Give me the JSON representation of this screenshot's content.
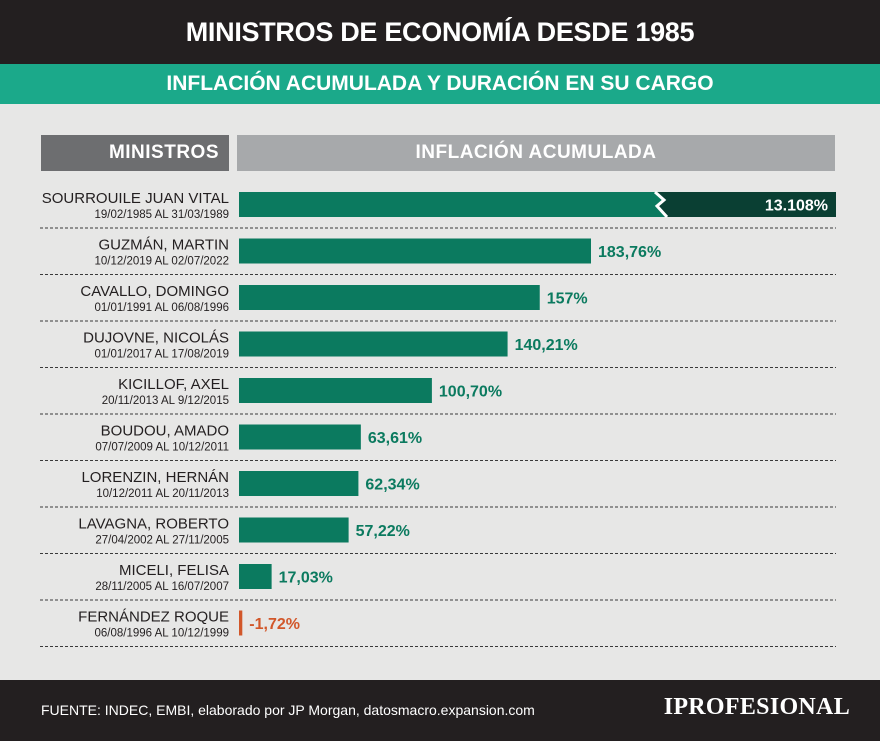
{
  "title": "MINISTROS DE ECONOMÍA DESDE 1985",
  "subtitle": "INFLACIÓN ACUMULADA Y DURACIÓN EN SU CARGO",
  "headers": {
    "ministers": "MINISTROS",
    "inflation": "INFLACIÓN ACUMULADA"
  },
  "footer": {
    "source": "FUENTE: INDEC, EMBI, elaborado por JP Morgan, datosmacro.expansion.com",
    "logo": "IPROFESIONAL"
  },
  "colors": {
    "bar": "#0b7a5f",
    "bar_dark": "#0a3f33",
    "label_positive": "#0b7a5f",
    "label_negative": "#d2572a",
    "text": "#231f20"
  },
  "chart_data": {
    "type": "bar",
    "orientation": "horizontal",
    "title": "INFLACIÓN ACUMULADA",
    "axis_break": {
      "category": "SOURROUILE JUAN VITAL",
      "note": "bar truncated with break mark"
    },
    "categories": [
      {
        "name": "SOURROUILE JUAN VITAL",
        "period": "19/02/1985 AL 31/03/1989",
        "value": 13108,
        "label": "13.108%"
      },
      {
        "name": "GUZMÁN, MARTIN",
        "period": "10/12/2019 AL 02/07/2022",
        "value": 183.76,
        "label": "183,76%"
      },
      {
        "name": "CAVALLO, DOMINGO",
        "period": "01/01/1991 AL 06/08/1996",
        "value": 157,
        "label": "157%"
      },
      {
        "name": "DUJOVNE, NICOLÁS",
        "period": "01/01/2017 AL 17/08/2019",
        "value": 140.21,
        "label": "140,21%"
      },
      {
        "name": "KICILLOF, AXEL",
        "period": "20/11/2013 AL 9/12/2015",
        "value": 100.7,
        "label": "100,70%"
      },
      {
        "name": "BOUDOU, AMADO",
        "period": "07/07/2009 AL 10/12/2011",
        "value": 63.61,
        "label": "63,61%"
      },
      {
        "name": "LORENZIN, HERNÁN",
        "period": "10/12/2011 AL 20/11/2013",
        "value": 62.34,
        "label": "62,34%"
      },
      {
        "name": "LAVAGNA, ROBERTO",
        "period": "27/04/2002 AL 27/11/2005",
        "value": 57.22,
        "label": "57,22%"
      },
      {
        "name": "MICELI, FELISA",
        "period": "28/11/2005 AL 16/07/2007",
        "value": 17.03,
        "label": "17,03%"
      },
      {
        "name": "FERNÁNDEZ ROQUE",
        "period": "06/08/1996 AL 10/12/1999",
        "value": -1.72,
        "label": "-1,72%"
      }
    ]
  }
}
